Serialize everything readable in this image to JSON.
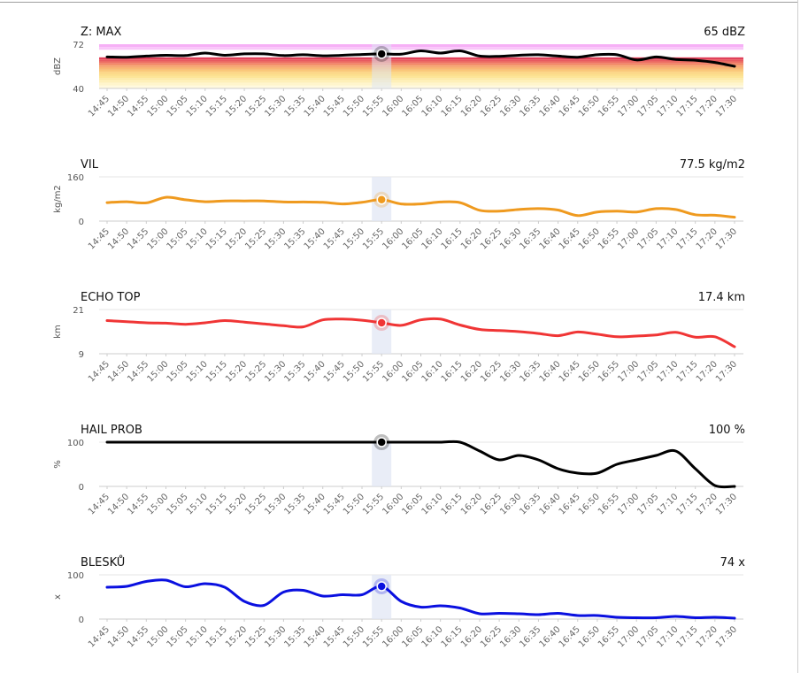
{
  "time_labels": [
    "14:45",
    "14:50",
    "14:55",
    "15:00",
    "15:05",
    "15:10",
    "15:15",
    "15:20",
    "15:25",
    "15:30",
    "15:35",
    "15:40",
    "15:45",
    "15:50",
    "15:55",
    "16:00",
    "16:05",
    "16:10",
    "16:15",
    "16:20",
    "16:25",
    "16:30",
    "16:35",
    "16:40",
    "16:45",
    "16:50",
    "16:55",
    "17:00",
    "17:05",
    "17:10",
    "17:15",
    "17:20",
    "17:30"
  ],
  "selected_time": "15:55",
  "chart_data": [
    {
      "type": "line",
      "title": "Z: MAX",
      "value_label": "65 dBZ",
      "ylabel": "dBZ",
      "ylim": [
        40,
        72
      ],
      "yticks": [
        "72",
        "40"
      ],
      "line_color": "#000000",
      "background": "reflectivity-bands",
      "categories": [
        "14:45",
        "14:50",
        "14:55",
        "15:00",
        "15:05",
        "15:10",
        "15:15",
        "15:20",
        "15:25",
        "15:30",
        "15:35",
        "15:40",
        "15:45",
        "15:50",
        "15:55",
        "16:00",
        "16:05",
        "16:10",
        "16:15",
        "16:20",
        "16:25",
        "16:30",
        "16:35",
        "16:40",
        "16:45",
        "16:50",
        "16:55",
        "17:00",
        "17:05",
        "17:10",
        "17:15",
        "17:20",
        "17:30"
      ],
      "values": [
        62.8,
        62.6,
        63.4,
        64,
        63.8,
        65.6,
        64,
        65,
        65,
        63.8,
        64.4,
        63.6,
        64,
        64.6,
        65,
        64.8,
        67.2,
        65.6,
        67.2,
        63.4,
        63.2,
        64,
        64.4,
        63.4,
        62.6,
        64.4,
        64.4,
        60.6,
        62.8,
        61,
        60.4,
        58.8,
        56
      ]
    },
    {
      "type": "line",
      "title": "VIL",
      "value_label": "77.5 kg/m2",
      "ylabel": "kg/m2",
      "ylim": [
        0,
        160
      ],
      "yticks": [
        "160",
        "0"
      ],
      "line_color": "#ef9a1f",
      "categories": [
        "14:45",
        "14:50",
        "14:55",
        "15:00",
        "15:05",
        "15:10",
        "15:15",
        "15:20",
        "15:25",
        "15:30",
        "15:35",
        "15:40",
        "15:45",
        "15:50",
        "15:55",
        "16:00",
        "16:05",
        "16:10",
        "16:15",
        "16:20",
        "16:25",
        "16:30",
        "16:35",
        "16:40",
        "16:45",
        "16:50",
        "16:55",
        "17:00",
        "17:05",
        "17:10",
        "17:15",
        "17:20",
        "17:30"
      ],
      "values": [
        67,
        70,
        66,
        86,
        77,
        70,
        73,
        73,
        73,
        69,
        69,
        68,
        62,
        68,
        77.5,
        62,
        62,
        69,
        67,
        39,
        36,
        42,
        45,
        40,
        20,
        33,
        36,
        33,
        45,
        42,
        23,
        21,
        14
      ]
    },
    {
      "type": "line",
      "title": "ECHO TOP",
      "value_label": "17.4 km",
      "ylabel": "km",
      "ylim": [
        9,
        21
      ],
      "yticks": [
        "21",
        "9"
      ],
      "line_color": "#f03535",
      "categories": [
        "14:45",
        "14:50",
        "14:55",
        "15:00",
        "15:05",
        "15:10",
        "15:15",
        "15:20",
        "15:25",
        "15:30",
        "15:35",
        "15:40",
        "15:45",
        "15:50",
        "15:55",
        "16:00",
        "16:05",
        "16:10",
        "16:15",
        "16:20",
        "16:25",
        "16:30",
        "16:35",
        "16:40",
        "16:45",
        "16:50",
        "16:55",
        "17:00",
        "17:05",
        "17:10",
        "17:15",
        "17:20",
        "17:30"
      ],
      "values": [
        18,
        17.7,
        17.4,
        17.3,
        17,
        17.4,
        18,
        17.6,
        17.1,
        16.6,
        16.3,
        18.2,
        18.4,
        18.1,
        17.4,
        16.7,
        18.2,
        18.4,
        16.8,
        15.6,
        15.3,
        15,
        14.5,
        13.9,
        14.9,
        14.3,
        13.6,
        13.8,
        14.1,
        14.8,
        13.5,
        13.6,
        10.9
      ]
    },
    {
      "type": "line",
      "title": "HAIL PROB",
      "value_label": "100 %",
      "ylabel": "%",
      "ylim": [
        0,
        100
      ],
      "yticks": [
        "100",
        "0"
      ],
      "line_color": "#000000",
      "categories": [
        "14:45",
        "14:50",
        "14:55",
        "15:00",
        "15:05",
        "15:10",
        "15:15",
        "15:20",
        "15:25",
        "15:30",
        "15:35",
        "15:40",
        "15:45",
        "15:50",
        "15:55",
        "16:00",
        "16:05",
        "16:10",
        "16:15",
        "16:20",
        "16:25",
        "16:30",
        "16:35",
        "16:40",
        "16:45",
        "16:50",
        "16:55",
        "17:00",
        "17:05",
        "17:10",
        "17:15",
        "17:20",
        "17:30"
      ],
      "values": [
        100,
        100,
        100,
        100,
        100,
        100,
        100,
        100,
        100,
        100,
        100,
        100,
        100,
        100,
        100,
        100,
        100,
        100,
        100,
        80,
        60,
        70,
        60,
        40,
        30,
        30,
        50,
        60,
        70,
        80,
        40,
        2,
        0
      ]
    },
    {
      "type": "line",
      "title": "BLESKŮ",
      "value_label": "74 x",
      "ylabel": "x",
      "ylim": [
        0,
        100
      ],
      "yticks": [
        "100",
        "0"
      ],
      "line_color": "#0a10e0",
      "categories": [
        "14:45",
        "14:50",
        "14:55",
        "15:00",
        "15:05",
        "15:10",
        "15:15",
        "15:20",
        "15:25",
        "15:30",
        "15:35",
        "15:40",
        "15:45",
        "15:50",
        "15:55",
        "16:00",
        "16:05",
        "16:10",
        "16:15",
        "16:20",
        "16:25",
        "16:30",
        "16:35",
        "16:40",
        "16:45",
        "16:50",
        "16:55",
        "17:00",
        "17:05",
        "17:10",
        "17:15",
        "17:20",
        "17:30"
      ],
      "values": [
        72,
        74,
        85,
        88,
        73,
        80,
        72,
        40,
        31,
        61,
        65,
        52,
        55,
        55,
        74,
        40,
        27,
        30,
        25,
        12,
        13,
        12,
        10,
        13,
        8,
        8,
        4,
        3,
        3,
        6,
        3,
        4,
        2
      ]
    }
  ]
}
